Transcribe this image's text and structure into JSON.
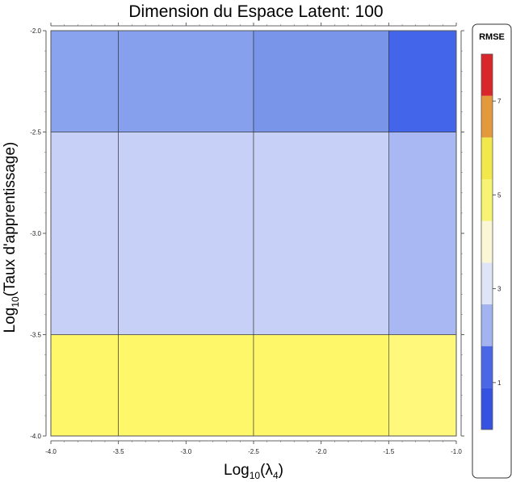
{
  "chart_data": {
    "type": "heatmap",
    "title": "Dimension du Espace Latent: 100",
    "xlabel_prefix": "Log",
    "xlabel_sub": "10",
    "xlabel_suffix": "(λ",
    "xlabel_sub2": "4",
    "xlabel_end": ")",
    "ylabel_prefix": "Log",
    "ylabel_sub": "10",
    "ylabel_suffix": "(Taux d'apprentissage)",
    "xlim": [
      -4.0,
      -1.0
    ],
    "ylim": [
      -4.0,
      -2.0
    ],
    "x_ticks": [
      "-4.0",
      "-3.5",
      "-3.0",
      "-2.5",
      "-2.0",
      "-1.5",
      "-1.0"
    ],
    "y_ticks": [
      "-4.0",
      "-3.5",
      "-3.0",
      "-2.5",
      "-2.0"
    ],
    "x_edges": [
      -4.0,
      -3.5,
      -2.5,
      -1.5,
      -1.0
    ],
    "y_edges": [
      -4.0,
      -3.5,
      -2.5,
      -2.0
    ],
    "z": [
      [
        4.8,
        4.8,
        4.8,
        4.9
      ],
      [
        3.2,
        3.2,
        3.2,
        2.8
      ],
      [
        2.55,
        2.5,
        2.35,
        1.8
      ]
    ],
    "legend": {
      "title": "RMSE",
      "range": [
        0,
        8
      ],
      "ticks": [
        "1",
        "3",
        "5",
        "7"
      ],
      "tick_values": [
        1,
        3,
        5,
        7
      ]
    },
    "colors": {
      "cells": [
        [
          "#fff76a",
          "#fff76a",
          "#fff76a",
          "#fff87a"
        ],
        [
          "#c7d1f7",
          "#c7d1f7",
          "#c7d1f7",
          "#a9b8f2"
        ],
        [
          "#8aa3ee",
          "#86a0ed",
          "#7895ea",
          "#4365ea"
        ]
      ],
      "legend_bands": [
        "#3552e3",
        "#4a68e6",
        "#a2b3f0",
        "#dfe4f6",
        "#fbf7d6",
        "#f7f373",
        "#f3e84b",
        "#e29a3c",
        "#d8262b"
      ],
      "gridline": "#333333"
    }
  }
}
